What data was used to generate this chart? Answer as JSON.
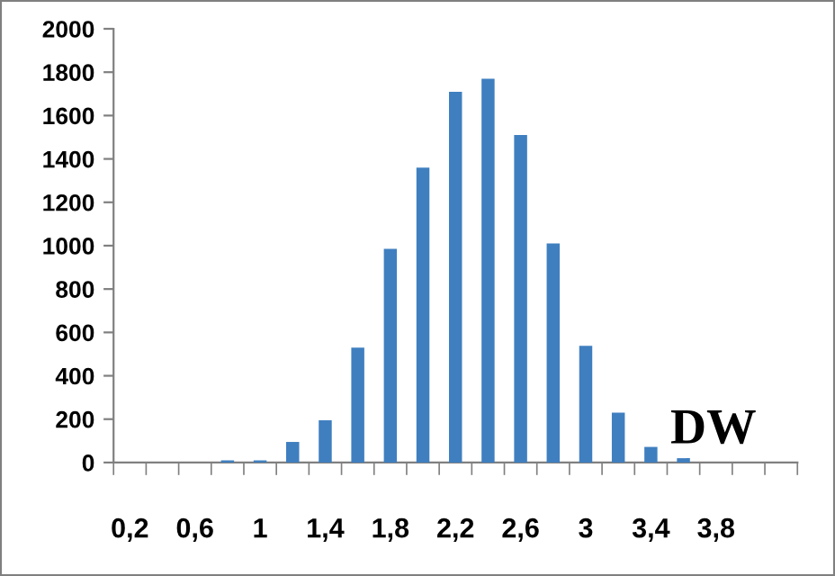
{
  "chart_data": {
    "type": "bar",
    "categories": [
      "0,2",
      null,
      "0,6",
      null,
      "1",
      null,
      "1,4",
      null,
      "1,8",
      null,
      "2,2",
      null,
      "2,6",
      null,
      "3",
      null,
      "3,4",
      null,
      "3,8",
      null,
      null
    ],
    "values": [
      0,
      0,
      0,
      10,
      10,
      95,
      195,
      530,
      985,
      1360,
      1710,
      1770,
      1510,
      1010,
      538,
      230,
      72,
      20,
      0,
      0,
      0
    ],
    "color": "#3f7fc0",
    "ylim": [
      0,
      2000
    ],
    "yticks": [
      0,
      200,
      400,
      600,
      800,
      1000,
      1200,
      1400,
      1600,
      1800,
      2000
    ],
    "grid": false,
    "legend": false,
    "annotations": [
      "DW"
    ]
  }
}
